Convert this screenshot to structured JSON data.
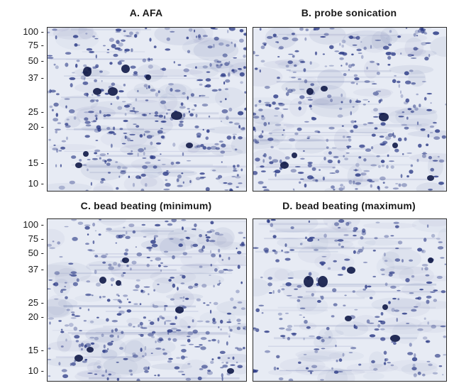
{
  "panels": [
    {
      "title": "A.  AFA"
    },
    {
      "title": "B.  probe sonication"
    },
    {
      "title": "C.  bead beating (minimum)"
    },
    {
      "title": "D.  bead beating (maximum)"
    }
  ],
  "mw_markers": [
    "100 -",
    "75 -",
    "50 -",
    "37 -",
    "25 -",
    "20 -",
    "15 -",
    "10 -"
  ],
  "colors": {
    "stain": "#2b3a86",
    "background": "#e7ebf4",
    "border": "#2a2a2a"
  }
}
